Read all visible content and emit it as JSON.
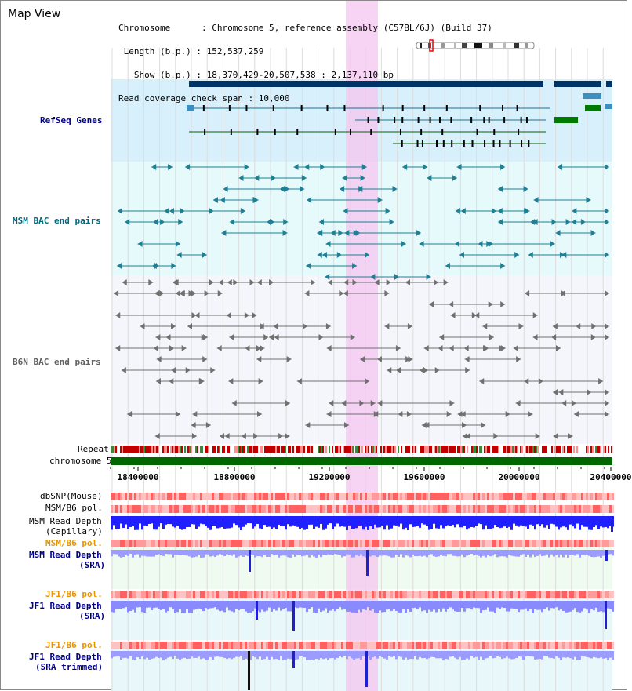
{
  "window": {
    "title": "Map View"
  },
  "header": {
    "chromosome_line": "Chromosome      : Chromosome 5, reference assembly (C57BL/6J) (Build 37)",
    "length_line": " Length (b.p.) : 152,537,259",
    "show_line": "   Show (b.p.) : 18,370,429-20,507,538 : 2,137,110 bp",
    "coverage_line": "Read coverage check span : 10,000"
  },
  "tracks": {
    "refseq": "RefSeq Genes",
    "msm_bac": "MSM BAC end pairs",
    "b6n_bac": "B6N BAC end pairs",
    "repeat": "Repeat",
    "chromosome": "chromosome 5",
    "dbsnp": "dbSNP(Mouse)",
    "msm_b6_pol_1": "MSM/B6 pol.",
    "msm_depth_cap_1": "MSM Read Depth",
    "msm_depth_cap_2": "(Capillary)",
    "msm_b6_pol_2": "MSM/B6 pol.",
    "msm_depth_sra_1": "MSM Read Depth",
    "msm_depth_sra_2": "(SRA)",
    "jf1_b6_pol_1": "JF1/B6 pol.",
    "jf1_depth_sra_1": "JF1 Read Depth",
    "jf1_depth_sra_2": "(SRA)",
    "jf1_b6_pol_2": "JF1/B6 pol.",
    "jf1_depth_trim_1": "JF1 Read Depth",
    "jf1_depth_trim_2": "(SRA trimmed)"
  },
  "axis": {
    "ticks": [
      "18400000",
      "18800000",
      "19200000",
      "19600000",
      "20000000",
      "20400000"
    ]
  },
  "colors": {
    "navy": "#003366",
    "teal": "#006b80",
    "refseq_bg": "#d8f0fb",
    "msm_bg": "#e6fafc",
    "b6n_bg": "#f4f6fb",
    "highlight": "#f5c6f0",
    "chromosome": "#006600",
    "depth_blue": "#1f1fff",
    "depth_light": "#8a8aff",
    "label_blue": "#00008b",
    "label_orange": "#e69500"
  }
}
